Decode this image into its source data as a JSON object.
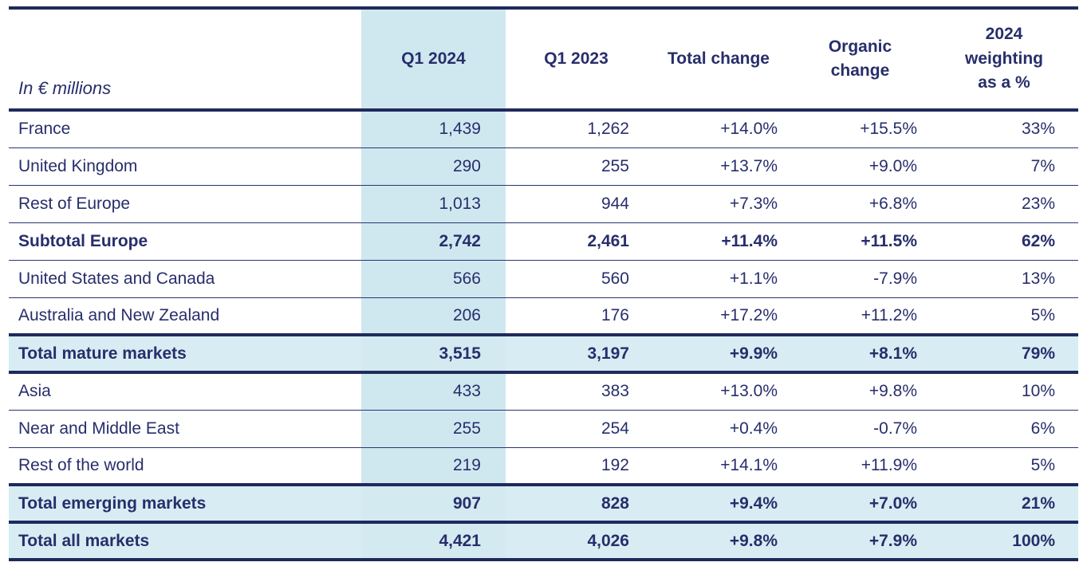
{
  "colors": {
    "text_navy": "#272e6b",
    "border_navy": "#1f2a5c",
    "column_highlight": "#cfe8f0",
    "total_row_background": "#d8edf3"
  },
  "table": {
    "unit_label": "In € millions",
    "columns": [
      {
        "key": "q1_2024",
        "label": "Q1 2024"
      },
      {
        "key": "q1_2023",
        "label": "Q1 2023"
      },
      {
        "key": "total_change",
        "label": "Total change"
      },
      {
        "key": "organic_change",
        "label": "Organic\nchange"
      },
      {
        "key": "weighting_2024",
        "label": "2024\nweighting\nas a %"
      }
    ],
    "rows": [
      {
        "label": "France",
        "style": "normal",
        "values": [
          "1,439",
          "1,262",
          "+14.0%",
          "+15.5%",
          "33%"
        ]
      },
      {
        "label": "United Kingdom",
        "style": "normal",
        "values": [
          "290",
          "255",
          "+13.7%",
          "+9.0%",
          "7%"
        ]
      },
      {
        "label": "Rest of Europe",
        "style": "normal",
        "values": [
          "1,013",
          "944",
          "+7.3%",
          "+6.8%",
          "23%"
        ]
      },
      {
        "label": "Subtotal Europe",
        "style": "subtotal",
        "values": [
          "2,742",
          "2,461",
          "+11.4%",
          "+11.5%",
          "62%"
        ]
      },
      {
        "label": "United States and Canada",
        "style": "normal",
        "values": [
          "566",
          "560",
          "+1.1%",
          "-7.9%",
          "13%"
        ]
      },
      {
        "label": "Australia and New Zealand",
        "style": "normal",
        "values": [
          "206",
          "176",
          "+17.2%",
          "+11.2%",
          "5%"
        ]
      },
      {
        "label": "Total mature markets",
        "style": "total",
        "values": [
          "3,515",
          "3,197",
          "+9.9%",
          "+8.1%",
          "79%"
        ]
      },
      {
        "label": "Asia",
        "style": "normal",
        "values": [
          "433",
          "383",
          "+13.0%",
          "+9.8%",
          "10%"
        ]
      },
      {
        "label": "Near and Middle East",
        "style": "normal",
        "values": [
          "255",
          "254",
          "+0.4%",
          "-0.7%",
          "6%"
        ]
      },
      {
        "label": "Rest of the world",
        "style": "normal",
        "values": [
          "219",
          "192",
          "+14.1%",
          "+11.9%",
          "5%"
        ]
      },
      {
        "label": "Total emerging markets",
        "style": "total",
        "values": [
          "907",
          "828",
          "+9.4%",
          "+7.0%",
          "21%"
        ]
      },
      {
        "label": "Total all markets",
        "style": "total",
        "values": [
          "4,421",
          "4,026",
          "+9.8%",
          "+7.9%",
          "100%"
        ]
      }
    ]
  }
}
